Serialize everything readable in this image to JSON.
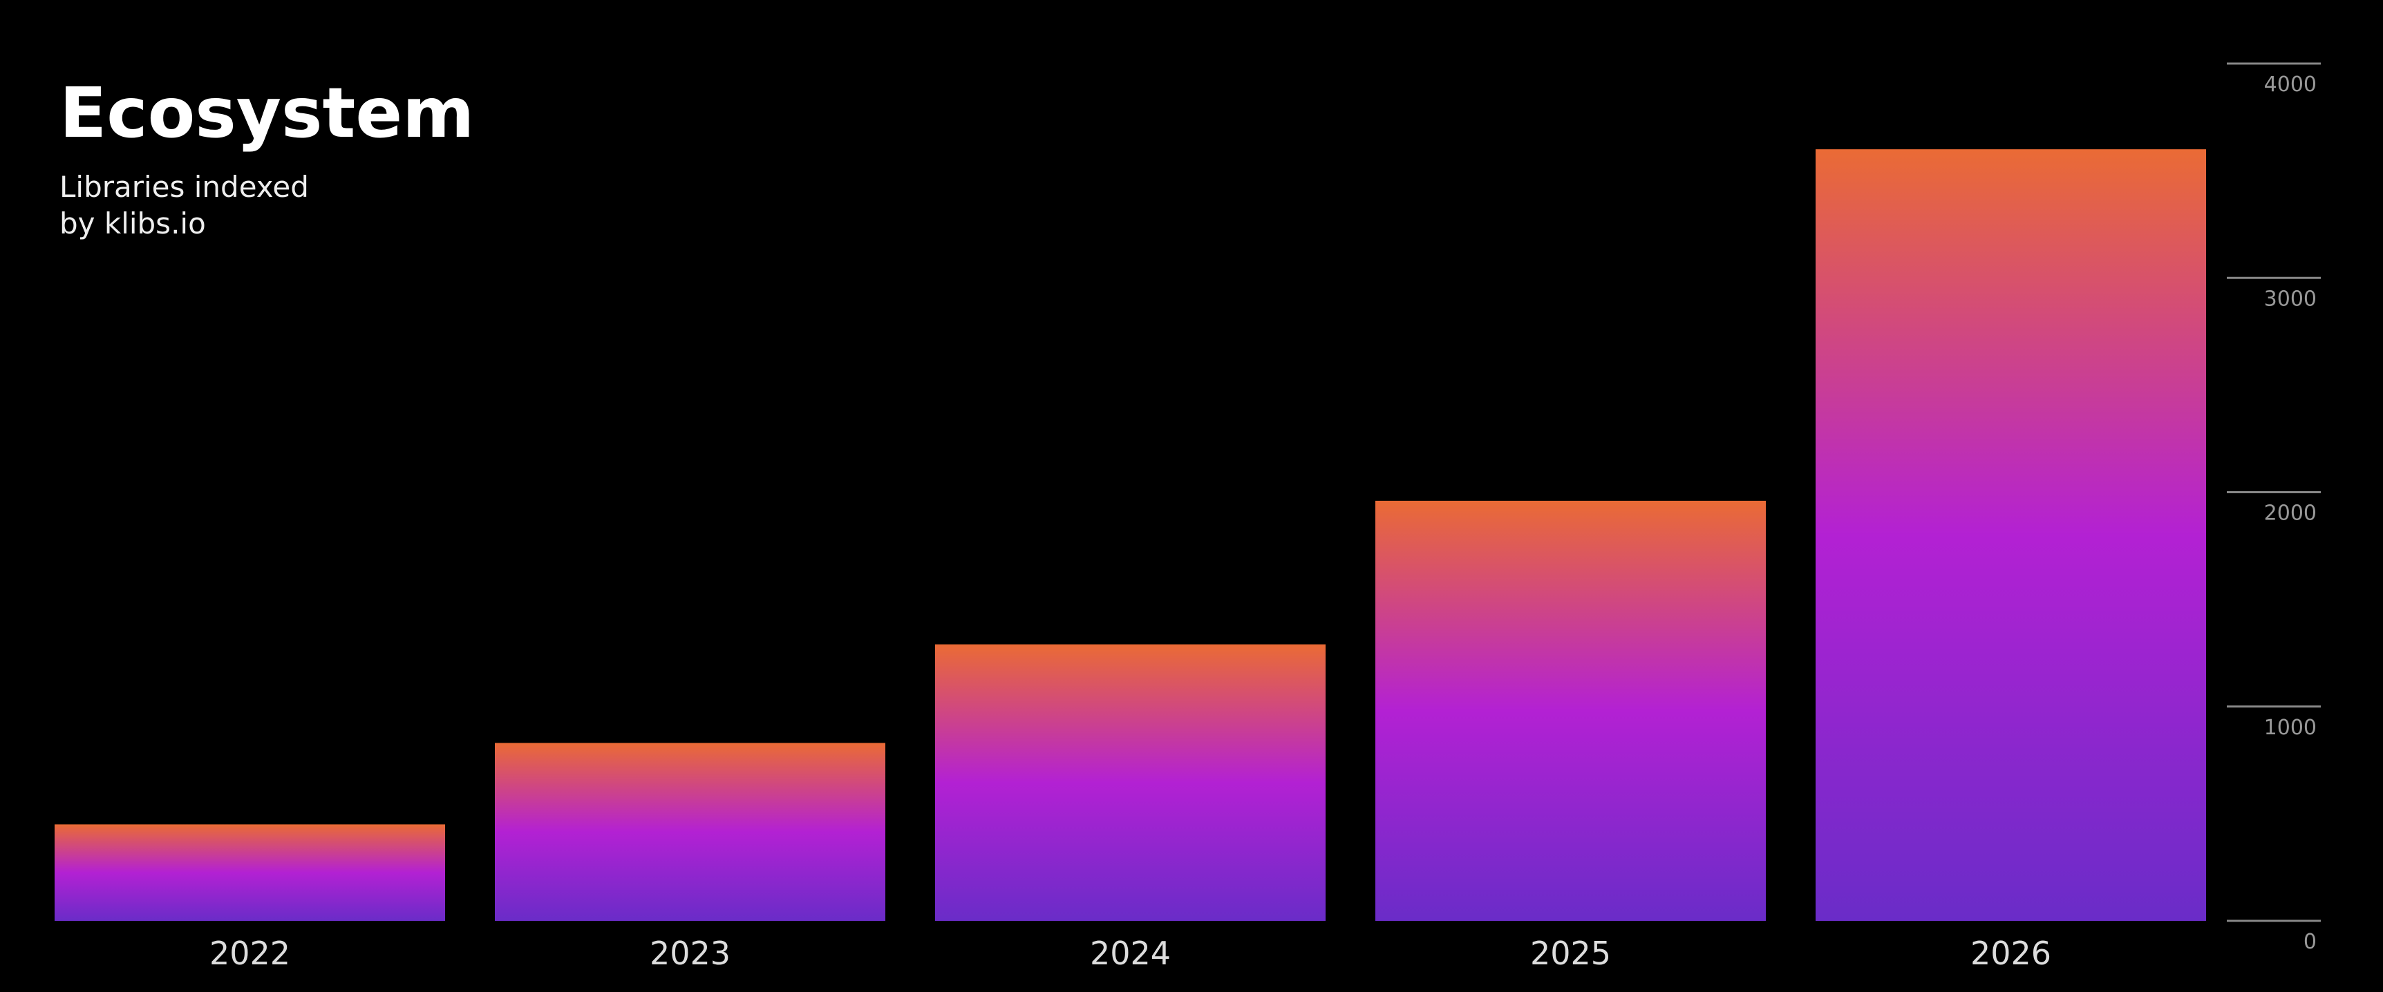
{
  "chart_data": {
    "type": "bar",
    "title": "Ecosystem",
    "subtitle": [
      "Libraries indexed",
      "by klibs.io"
    ],
    "categories": [
      "2022",
      "2023",
      "2024",
      "2025",
      "2026"
    ],
    "values": [
      450,
      830,
      1290,
      1960,
      3600
    ],
    "gradient_colors": [
      "#6a2cc8",
      "#b321d3",
      "#ea6b35"
    ],
    "ylim": [
      0,
      4000
    ],
    "yticks": [
      0,
      1000,
      2000,
      3000,
      4000
    ]
  }
}
